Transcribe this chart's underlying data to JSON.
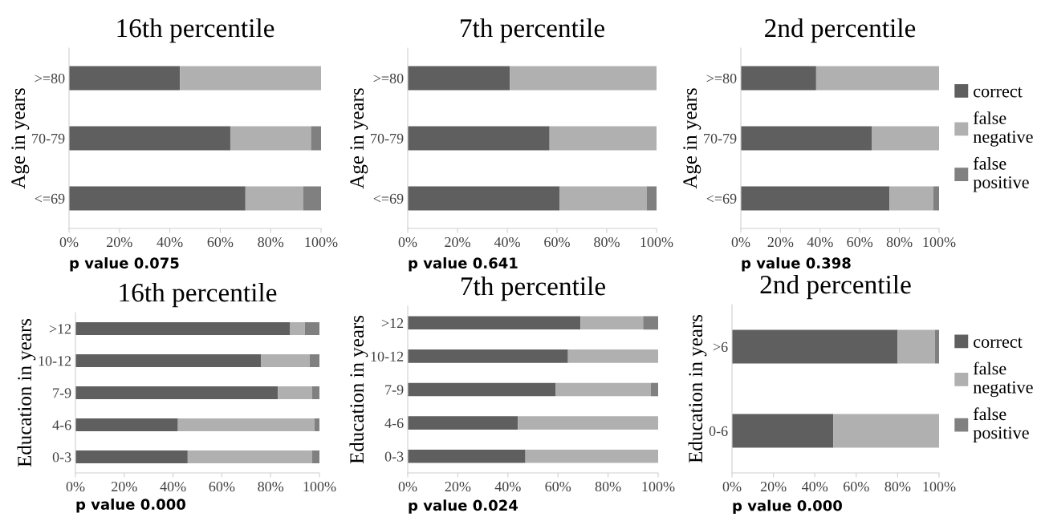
{
  "chart_data": [
    {
      "type": "bar",
      "orientation": "horizontal",
      "stacked": true,
      "title": "16th percentile",
      "ylabel": "Age in years",
      "categories": [
        ">=80",
        "70-79",
        "<=69"
      ],
      "series": [
        {
          "color": "#5f5f5f",
          "values": [
            44,
            64,
            70
          ]
        },
        {
          "color": "#b0b0b0",
          "values": [
            56,
            32,
            23
          ]
        },
        {
          "color": "#808080",
          "values": [
            0,
            4,
            7
          ]
        }
      ],
      "xlim": [
        0,
        100
      ],
      "xticks": [
        {
          "value": 0,
          "label": "0%"
        },
        {
          "value": 20,
          "label": "20%"
        },
        {
          "value": 40,
          "label": "40%"
        },
        {
          "value": 60,
          "label": "60%"
        },
        {
          "value": 80,
          "label": "80%"
        },
        {
          "value": 100,
          "label": "100%"
        }
      ],
      "annotations": [
        "p value 0.075"
      ],
      "grid": false,
      "legend": false
    },
    {
      "type": "bar",
      "orientation": "horizontal",
      "stacked": true,
      "title": "7th percentile",
      "ylabel": "Age in years",
      "categories": [
        ">=80",
        "70-79",
        "<=69"
      ],
      "series": [
        {
          "color": "#5f5f5f",
          "values": [
            41,
            57,
            61
          ]
        },
        {
          "color": "#b0b0b0",
          "values": [
            59,
            43,
            35
          ]
        },
        {
          "color": "#808080",
          "values": [
            0,
            0,
            4
          ]
        }
      ],
      "xlim": [
        0,
        100
      ],
      "xticks": [
        {
          "value": 0,
          "label": "0%"
        },
        {
          "value": 20,
          "label": "20%"
        },
        {
          "value": 40,
          "label": "40%"
        },
        {
          "value": 60,
          "label": "60%"
        },
        {
          "value": 80,
          "label": "80%"
        },
        {
          "value": 100,
          "label": "100%"
        }
      ],
      "annotations": [
        "p value 0.641"
      ],
      "grid": false,
      "legend": false
    },
    {
      "type": "bar",
      "orientation": "horizontal",
      "stacked": true,
      "title": "2nd percentile",
      "ylabel": "Age in years",
      "categories": [
        ">=80",
        "70-79",
        "<=69"
      ],
      "series": [
        {
          "name": "correct",
          "color": "#5f5f5f",
          "values": [
            38,
            66,
            75
          ]
        },
        {
          "name": "false negative",
          "color": "#b0b0b0",
          "values": [
            62,
            34,
            22
          ]
        },
        {
          "name": "false positive",
          "color": "#808080",
          "values": [
            0,
            0,
            3
          ]
        }
      ],
      "xlim": [
        0,
        100
      ],
      "xticks": [
        {
          "value": 0,
          "label": "0%"
        },
        {
          "value": 20,
          "label": "20%"
        },
        {
          "value": 40,
          "label": "40%"
        },
        {
          "value": 60,
          "label": "60%"
        },
        {
          "value": 80,
          "label": "80%"
        },
        {
          "value": 100,
          "label": "100%"
        }
      ],
      "annotations": [
        "p value 0.398"
      ],
      "grid": false,
      "legend": "right"
    },
    {
      "type": "bar",
      "orientation": "horizontal",
      "stacked": true,
      "title": "16th percentile",
      "ylabel": "Education in years",
      "categories": [
        ">12",
        "10-12",
        "7-9",
        "4-6",
        "0-3"
      ],
      "series": [
        {
          "color": "#5f5f5f",
          "values": [
            88,
            76,
            83,
            42,
            46
          ]
        },
        {
          "color": "#b0b0b0",
          "values": [
            6,
            20,
            14,
            56,
            51
          ]
        },
        {
          "color": "#808080",
          "values": [
            6,
            4,
            3,
            2,
            3
          ]
        }
      ],
      "xlim": [
        0,
        100
      ],
      "xticks": [
        {
          "value": 0,
          "label": "0%"
        },
        {
          "value": 20,
          "label": "20%"
        },
        {
          "value": 40,
          "label": "40%"
        },
        {
          "value": 60,
          "label": "60%"
        },
        {
          "value": 80,
          "label": "80%"
        },
        {
          "value": 100,
          "label": "100%"
        }
      ],
      "annotations": [
        "p value 0.000"
      ],
      "grid": false,
      "legend": false
    },
    {
      "type": "bar",
      "orientation": "horizontal",
      "stacked": true,
      "title": "7th percentile",
      "ylabel": "Education in years",
      "categories": [
        ">12",
        "10-12",
        "7-9",
        "4-6",
        "0-3"
      ],
      "series": [
        {
          "color": "#5f5f5f",
          "values": [
            69,
            64,
            59,
            44,
            47
          ]
        },
        {
          "color": "#b0b0b0",
          "values": [
            25,
            36,
            38,
            56,
            53
          ]
        },
        {
          "color": "#808080",
          "values": [
            6,
            0,
            3,
            0,
            0
          ]
        }
      ],
      "xlim": [
        0,
        100
      ],
      "xticks": [
        {
          "value": 0,
          "label": "0%"
        },
        {
          "value": 20,
          "label": "20%"
        },
        {
          "value": 40,
          "label": "40%"
        },
        {
          "value": 60,
          "label": "60%"
        },
        {
          "value": 80,
          "label": "80%"
        },
        {
          "value": 100,
          "label": "100%"
        }
      ],
      "annotations": [
        "p value 0.024"
      ],
      "grid": false,
      "legend": false
    },
    {
      "type": "bar",
      "orientation": "horizontal",
      "stacked": true,
      "title": "2nd percentile",
      "ylabel": "Education in years",
      "categories": [
        ">6",
        "0-6"
      ],
      "series": [
        {
          "name": "correct",
          "color": "#5f5f5f",
          "values": [
            80,
            49
          ]
        },
        {
          "name": "false negative",
          "color": "#b0b0b0",
          "values": [
            18,
            51
          ]
        },
        {
          "name": "false positive",
          "color": "#808080",
          "values": [
            2,
            0
          ]
        }
      ],
      "xlim": [
        0,
        100
      ],
      "xticks": [
        {
          "value": 0,
          "label": "0%"
        },
        {
          "value": 20,
          "label": "20%"
        },
        {
          "value": 40,
          "label": "40%"
        },
        {
          "value": 60,
          "label": "60%"
        },
        {
          "value": 80,
          "label": "80%"
        },
        {
          "value": 100,
          "label": "100%"
        }
      ],
      "annotations": [
        "p value 0.000"
      ],
      "grid": false,
      "legend": "right"
    }
  ]
}
